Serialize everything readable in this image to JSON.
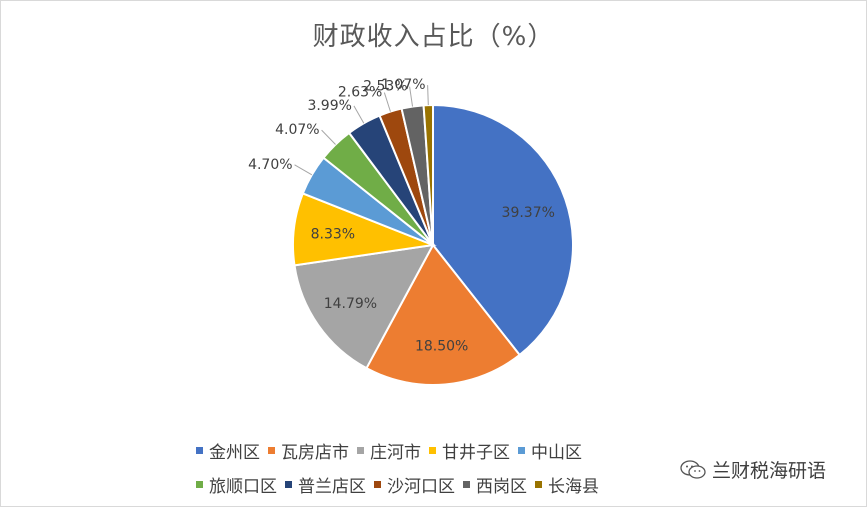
{
  "chart_data": {
    "type": "pie",
    "title": "财政收入占比（%）",
    "categories": [
      "金州区",
      "瓦房店市",
      "庄河市",
      "甘井子区",
      "中山区",
      "旅顺口区",
      "普兰店区",
      "沙河口区",
      "西岗区",
      "长海县"
    ],
    "values": [
      39.37,
      18.5,
      14.79,
      8.33,
      4.7,
      4.07,
      3.99,
      2.63,
      2.53,
      1.07
    ],
    "data_labels": [
      "39.37%",
      "18.50%",
      "14.79%",
      "8.33%",
      "4.70%",
      "4.07%",
      "3.99%",
      "2.63%",
      "2.53%",
      "1.07%"
    ],
    "colors": [
      "#4472c4",
      "#ed7d31",
      "#a5a5a5",
      "#ffc000",
      "#5b9bd5",
      "#70ad47",
      "#264478",
      "#9e480e",
      "#636363",
      "#997300"
    ],
    "legend_position": "bottom",
    "start_angle": "12 o'clock, clockwise"
  },
  "watermark": {
    "text": "兰财税海研语",
    "icon": "wechat-icon"
  }
}
